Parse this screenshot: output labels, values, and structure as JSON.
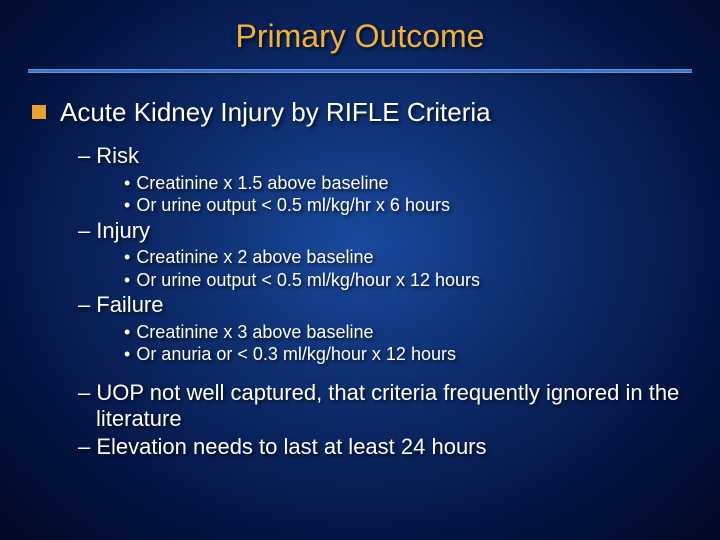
{
  "colors": {
    "background_center": "#1a4a9e",
    "background_mid": "#0d2e6e",
    "background_outer": "#041545",
    "background_edge": "#010822",
    "title_color": "#f2b13a",
    "bullet_square": "#e8a02e",
    "text_color": "#ffffff",
    "divider_light": "#6fa8f5",
    "divider_dark": "#2a5fb8"
  },
  "typography": {
    "title_fontsize": 32,
    "lvl1_fontsize": 26,
    "lvl2_fontsize": 22,
    "lvl3_fontsize": 18,
    "font_family": "Arial"
  },
  "slide": {
    "title": "Primary Outcome",
    "main": "Acute Kidney Injury by RIFLE Criteria",
    "categories": [
      {
        "label": "Risk",
        "points": [
          "Creatinine x 1.5 above baseline",
          "Or urine output < 0.5 ml/kg/hr x 6 hours"
        ]
      },
      {
        "label": "Injury",
        "points": [
          "Creatinine x 2 above baseline",
          "Or urine output < 0.5 ml/kg/hour x 12 hours"
        ]
      },
      {
        "label": "Failure",
        "points": [
          "Creatinine x 3 above baseline",
          "Or anuria or < 0.3 ml/kg/hour x 12 hours"
        ]
      }
    ],
    "notes": [
      "UOP not well captured, that criteria frequently ignored in the literature",
      "Elevation needs to last at least 24 hours"
    ]
  }
}
